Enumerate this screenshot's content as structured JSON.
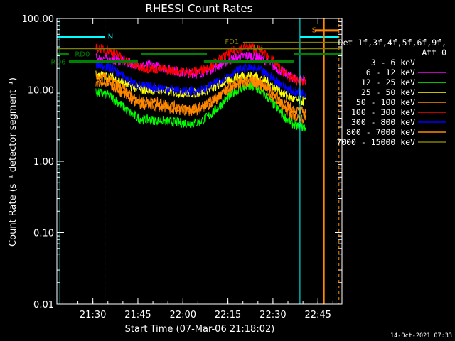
{
  "chart_data": {
    "type": "line",
    "title": "RHESSI Count Rates",
    "xlabel": "Start Time (07-Mar-06 21:18:02)",
    "ylabel": "Count Rate (s⁻¹ detector segment⁻¹)",
    "y_scale": "log",
    "ylim": [
      0.01,
      100
    ],
    "xlim_minutes": [
      21.3,
      22.9
    ],
    "x_ticks": [
      "21:30",
      "21:45",
      "22:00",
      "22:15",
      "22:30",
      "22:45"
    ],
    "y_ticks": [
      "0.01",
      "0.10",
      "1.00",
      "10.00",
      "100.00"
    ],
    "x_tick_times": [
      "21:30",
      "21:45",
      "22:00",
      "22:15",
      "22:30",
      "22:45"
    ],
    "legend_header": [
      "Det 1f,3f,4f,5f,6f,9f,",
      "Att 0"
    ],
    "legend_placement": "right",
    "series": [
      {
        "name": "3 - 6 keV",
        "color": "#000000",
        "values_at": {
          "21:32": 9,
          "21:48": 3.2,
          "22:03": 2.6,
          "22:22": 12,
          "22:40": 2.5
        }
      },
      {
        "name": "6 - 12 keV",
        "color": "#ff00ff",
        "values_at": {
          "21:32": 28,
          "21:48": 22,
          "22:03": 17,
          "22:22": 30,
          "22:40": 14
        }
      },
      {
        "name": "12 - 25 keV",
        "color": "#00ff00",
        "values_at": {
          "21:32": 9,
          "21:48": 3.8,
          "22:03": 3.4,
          "22:22": 11,
          "22:40": 3
        }
      },
      {
        "name": "25 - 50 keV",
        "color": "#ffff00",
        "values_at": {
          "21:32": 16,
          "21:48": 10,
          "22:03": 9,
          "22:22": 16,
          "22:40": 7
        }
      },
      {
        "name": "50 - 100 keV",
        "color": "#ff8800",
        "values_at": {
          "21:32": 15,
          "21:48": 7,
          "22:03": 5.5,
          "22:22": 14,
          "22:40": 5
        }
      },
      {
        "name": "100 - 300 keV",
        "color": "#ff0000",
        "values_at": {
          "21:32": 38,
          "21:48": 20,
          "22:03": 18,
          "22:22": 40,
          "22:40": 13
        }
      },
      {
        "name": "300 - 800 keV",
        "color": "#0000ff",
        "values_at": {
          "21:32": 22,
          "21:48": 11,
          "22:03": 9.5,
          "22:22": 20,
          "22:40": 9
        }
      },
      {
        "name": "800 - 7000 keV",
        "color": "#ff8800",
        "values_at": {
          "21:32": 13,
          "21:48": 6,
          "22:03": 5,
          "22:22": 13,
          "22:40": 4
        }
      },
      {
        "name": "7000 - 15000 keV",
        "color": "#808000",
        "values_at": {
          "21:32": 38,
          "21:48": 38,
          "22:03": 38,
          "22:22": 38,
          "22:40": 38
        }
      }
    ],
    "annotations": [
      "N",
      "RD0",
      "RD6",
      "FD1",
      "FD2",
      "S"
    ],
    "timestamp": "14-Oct-2021 07:33"
  },
  "colors": {
    "background": "#000000",
    "axes": "#ffffff",
    "night_markers": "#00ffff",
    "rd_markers": "#008000",
    "fd_markers": "#808000",
    "saa_markers": "#ff8800"
  }
}
